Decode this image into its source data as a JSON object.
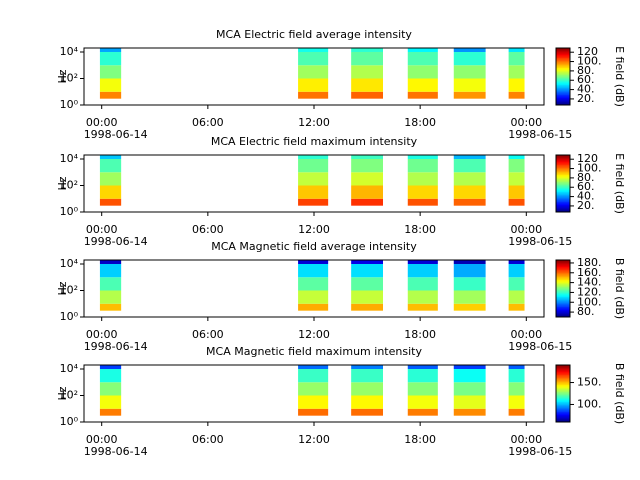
{
  "chart_data": [
    {
      "type": "heatmap",
      "title": "MCA  Electric field average intensity",
      "ylabel": "Hz",
      "zlabel": "E field (dB)",
      "xlim": [
        -1,
        25
      ],
      "xticks": [
        {
          "value": 0,
          "label": "00:00"
        },
        {
          "value": 6,
          "label": "06:00"
        },
        {
          "value": 12,
          "label": "12:00"
        },
        {
          "value": 18,
          "label": "18:00"
        },
        {
          "value": 24,
          "label": "00:00"
        }
      ],
      "date_labels": [
        {
          "value": 0,
          "label": "1998-06-14"
        },
        {
          "value": 24,
          "label": "1998-06-15"
        }
      ],
      "log_y": true,
      "ylim": [
        1,
        20000
      ],
      "yticks": [
        {
          "value": 1,
          "label": "10⁰"
        },
        {
          "value": 100,
          "label": "10²"
        },
        {
          "value": 10000,
          "label": "10⁴"
        }
      ],
      "freq_edges": [
        3,
        10,
        100,
        1000,
        10000,
        25000
      ],
      "colormap": "jet",
      "clim": [
        7,
        129
      ],
      "cticks": [
        {
          "value": 20,
          "label": "20."
        },
        {
          "value": 40,
          "label": "40."
        },
        {
          "value": 60,
          "label": "60."
        },
        {
          "value": 80,
          "label": "80."
        },
        {
          "value": 100,
          "label": "100."
        },
        {
          "value": 120,
          "label": "120"
        }
      ],
      "segments": [
        {
          "x": [
            -0.1,
            1.1
          ],
          "z": [
            98,
            82,
            68,
            58,
            42
          ]
        },
        {
          "x": [
            11.1,
            12.8
          ],
          "z": [
            100,
            85,
            72,
            62,
            55
          ]
        },
        {
          "x": [
            14.1,
            15.9
          ],
          "z": [
            102,
            86,
            74,
            64,
            58
          ]
        },
        {
          "x": [
            17.3,
            19.0
          ],
          "z": [
            100,
            84,
            70,
            62,
            52
          ]
        },
        {
          "x": [
            19.9,
            21.7
          ],
          "z": [
            96,
            82,
            70,
            58,
            40
          ]
        },
        {
          "x": [
            23.0,
            23.9
          ],
          "z": [
            98,
            84,
            72,
            64,
            50
          ]
        }
      ]
    },
    {
      "type": "heatmap",
      "title": "MCA  Electric field maximum intensity",
      "ylabel": "Hz",
      "zlabel": "E field (dB)",
      "xlim": [
        -1,
        25
      ],
      "xticks": [
        {
          "value": 0,
          "label": "00:00"
        },
        {
          "value": 6,
          "label": "06:00"
        },
        {
          "value": 12,
          "label": "12:00"
        },
        {
          "value": 18,
          "label": "18:00"
        },
        {
          "value": 24,
          "label": "00:00"
        }
      ],
      "date_labels": [
        {
          "value": 0,
          "label": "1998-06-14"
        },
        {
          "value": 24,
          "label": "1998-06-15"
        }
      ],
      "log_y": true,
      "ylim": [
        1,
        20000
      ],
      "yticks": [
        {
          "value": 1,
          "label": "10⁰"
        },
        {
          "value": 100,
          "label": "10²"
        },
        {
          "value": 10000,
          "label": "10⁴"
        }
      ],
      "freq_edges": [
        3,
        10,
        100,
        1000,
        10000,
        25000
      ],
      "colormap": "jet",
      "clim": [
        7,
        129
      ],
      "cticks": [
        {
          "value": 20,
          "label": "20."
        },
        {
          "value": 40,
          "label": "40."
        },
        {
          "value": 60,
          "label": "60."
        },
        {
          "value": 80,
          "label": "80."
        },
        {
          "value": 100,
          "label": "100."
        },
        {
          "value": 120,
          "label": "120"
        }
      ],
      "segments": [
        {
          "x": [
            -0.1,
            1.1
          ],
          "z": [
            104,
            88,
            72,
            62,
            46
          ]
        },
        {
          "x": [
            11.1,
            12.8
          ],
          "z": [
            106,
            90,
            76,
            66,
            58
          ]
        },
        {
          "x": [
            14.1,
            15.9
          ],
          "z": [
            108,
            92,
            78,
            68,
            60
          ]
        },
        {
          "x": [
            17.3,
            19.0
          ],
          "z": [
            104,
            88,
            74,
            66,
            56
          ]
        },
        {
          "x": [
            19.9,
            21.7
          ],
          "z": [
            102,
            88,
            74,
            62,
            44
          ]
        },
        {
          "x": [
            23.0,
            23.9
          ],
          "z": [
            104,
            90,
            76,
            68,
            54
          ]
        }
      ]
    },
    {
      "type": "heatmap",
      "title": "MCA  Magnetic field average intensity",
      "ylabel": "Hz",
      "zlabel": "B field (dB)",
      "xlim": [
        -1,
        25
      ],
      "xticks": [
        {
          "value": 0,
          "label": "00:00"
        },
        {
          "value": 6,
          "label": "06:00"
        },
        {
          "value": 12,
          "label": "12:00"
        },
        {
          "value": 18,
          "label": "18:00"
        },
        {
          "value": 24,
          "label": "00:00"
        }
      ],
      "date_labels": [
        {
          "value": 0,
          "label": "1998-06-14"
        },
        {
          "value": 24,
          "label": "1998-06-15"
        }
      ],
      "log_y": true,
      "ylim": [
        1,
        20000
      ],
      "yticks": [
        {
          "value": 1,
          "label": "10⁰"
        },
        {
          "value": 100,
          "label": "10²"
        },
        {
          "value": 10000,
          "label": "10⁴"
        }
      ],
      "freq_edges": [
        3,
        10,
        100,
        1000,
        10000,
        25000
      ],
      "colormap": "jet",
      "clim": [
        70,
        186
      ],
      "cticks": [
        {
          "value": 80,
          "label": "80."
        },
        {
          "value": 100,
          "label": "100."
        },
        {
          "value": 120,
          "label": "120."
        },
        {
          "value": 140,
          "label": "140."
        },
        {
          "value": 160,
          "label": "160."
        },
        {
          "value": 180,
          "label": "180."
        }
      ],
      "segments": [
        {
          "x": [
            -0.1,
            1.1
          ],
          "z": [
            150,
            134,
            122,
            108,
            78
          ]
        },
        {
          "x": [
            11.1,
            12.8
          ],
          "z": [
            152,
            136,
            124,
            110,
            80
          ]
        },
        {
          "x": [
            14.1,
            15.9
          ],
          "z": [
            152,
            136,
            124,
            110,
            82
          ]
        },
        {
          "x": [
            17.3,
            19.0
          ],
          "z": [
            150,
            134,
            122,
            108,
            80
          ]
        },
        {
          "x": [
            19.9,
            21.7
          ],
          "z": [
            148,
            132,
            120,
            104,
            76
          ]
        },
        {
          "x": [
            23.0,
            23.9
          ],
          "z": [
            150,
            134,
            122,
            108,
            80
          ]
        }
      ]
    },
    {
      "type": "heatmap",
      "title": "MCA  Magnetic field maximum intensity",
      "ylabel": "Hz",
      "zlabel": "B field (dB)",
      "xlim": [
        -1,
        25
      ],
      "xticks": [
        {
          "value": 0,
          "label": "00:00"
        },
        {
          "value": 6,
          "label": "06:00"
        },
        {
          "value": 12,
          "label": "12:00"
        },
        {
          "value": 18,
          "label": "18:00"
        },
        {
          "value": 24,
          "label": "00:00"
        }
      ],
      "date_labels": [
        {
          "value": 0,
          "label": "1998-06-14"
        },
        {
          "value": 24,
          "label": "1998-06-15"
        }
      ],
      "log_y": true,
      "ylim": [
        1,
        20000
      ],
      "yticks": [
        {
          "value": 1,
          "label": "10⁰"
        },
        {
          "value": 100,
          "label": "10²"
        },
        {
          "value": 10000,
          "label": "10⁴"
        }
      ],
      "freq_edges": [
        3,
        10,
        100,
        1000,
        10000,
        25000
      ],
      "colormap": "jet",
      "clim": [
        60,
        190
      ],
      "cticks": [
        {
          "value": 100,
          "label": "100."
        },
        {
          "value": 150,
          "label": "150."
        }
      ],
      "segments": [
        {
          "x": [
            -0.1,
            1.1
          ],
          "z": [
            158,
            140,
            126,
            112,
            84
          ]
        },
        {
          "x": [
            11.1,
            12.8
          ],
          "z": [
            160,
            142,
            128,
            116,
            90
          ]
        },
        {
          "x": [
            14.1,
            15.9
          ],
          "z": [
            160,
            142,
            128,
            116,
            92
          ]
        },
        {
          "x": [
            17.3,
            19.0
          ],
          "z": [
            158,
            140,
            126,
            114,
            88
          ]
        },
        {
          "x": [
            19.9,
            21.7
          ],
          "z": [
            156,
            138,
            124,
            110,
            84
          ]
        },
        {
          "x": [
            23.0,
            23.9
          ],
          "z": [
            158,
            140,
            126,
            114,
            88
          ]
        }
      ]
    }
  ]
}
